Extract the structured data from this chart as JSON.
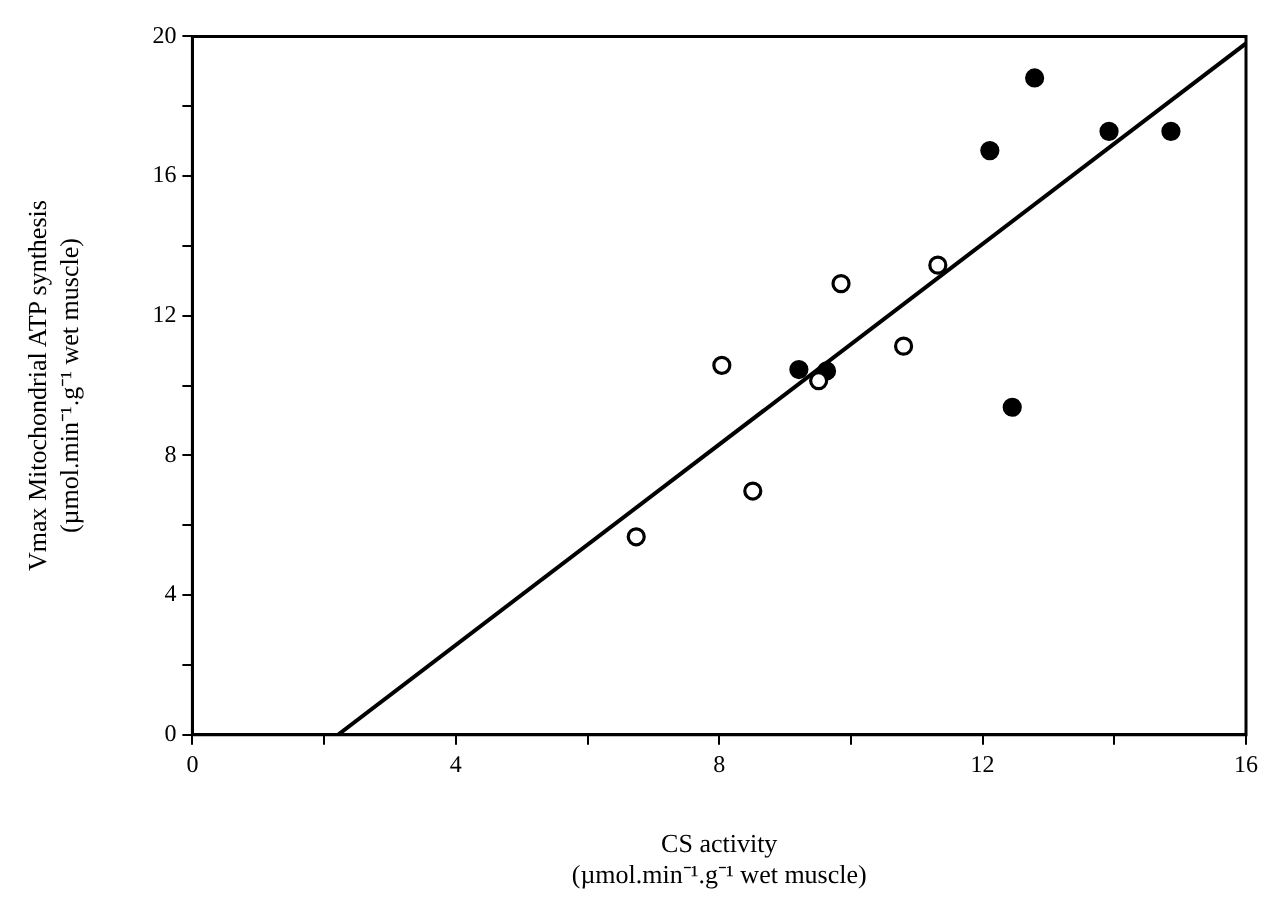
{
  "chart_data": {
    "type": "scatter",
    "xlabel": [
      "CS activity",
      "(µmol.min⁻¹.g⁻¹ wet muscle)"
    ],
    "ylabel": [
      "Vmax Mitochondrial ATP synthesis",
      "(µmol.min⁻¹.g⁻¹ wet muscle)"
    ],
    "xlim": [
      0,
      16
    ],
    "xticks": [
      0,
      {
        "value": 2,
        "label": null
      },
      4,
      {
        "value": 6,
        "label": null
      },
      8,
      {
        "value": 10,
        "label": null
      },
      12,
      {
        "value": 14,
        "label": null
      },
      16
    ],
    "ylim": [
      0,
      20
    ],
    "yticks": [
      0,
      {
        "value": 2,
        "label": null
      },
      4,
      {
        "value": 6,
        "label": null
      },
      8,
      {
        "value": 10,
        "label": null
      },
      12,
      {
        "value": 14,
        "label": null
      },
      16,
      {
        "value": 18,
        "label": null
      },
      20
    ],
    "grid": false,
    "legend": false,
    "marker": "circle",
    "series": [
      {
        "type": "scatter",
        "color": "#ffffff",
        "x": [
          6.74,
          8.04,
          8.51,
          9.51,
          9.85,
          10.8,
          11.32
        ],
        "values": [
          5.67,
          10.58,
          6.98,
          10.14,
          12.92,
          11.13,
          13.45
        ]
      },
      {
        "type": "scatter",
        "color": "#000000",
        "x": [
          9.21,
          9.63,
          12.11,
          12.45,
          12.79,
          13.92,
          14.86
        ],
        "values": [
          10.46,
          10.42,
          16.73,
          9.38,
          18.81,
          17.28,
          17.28
        ]
      },
      {
        "type": "line",
        "color": "#000000",
        "line_style": "solid",
        "marker": "none",
        "x": [
          2.21,
          16
        ],
        "values": [
          0,
          19.8
        ]
      }
    ]
  }
}
